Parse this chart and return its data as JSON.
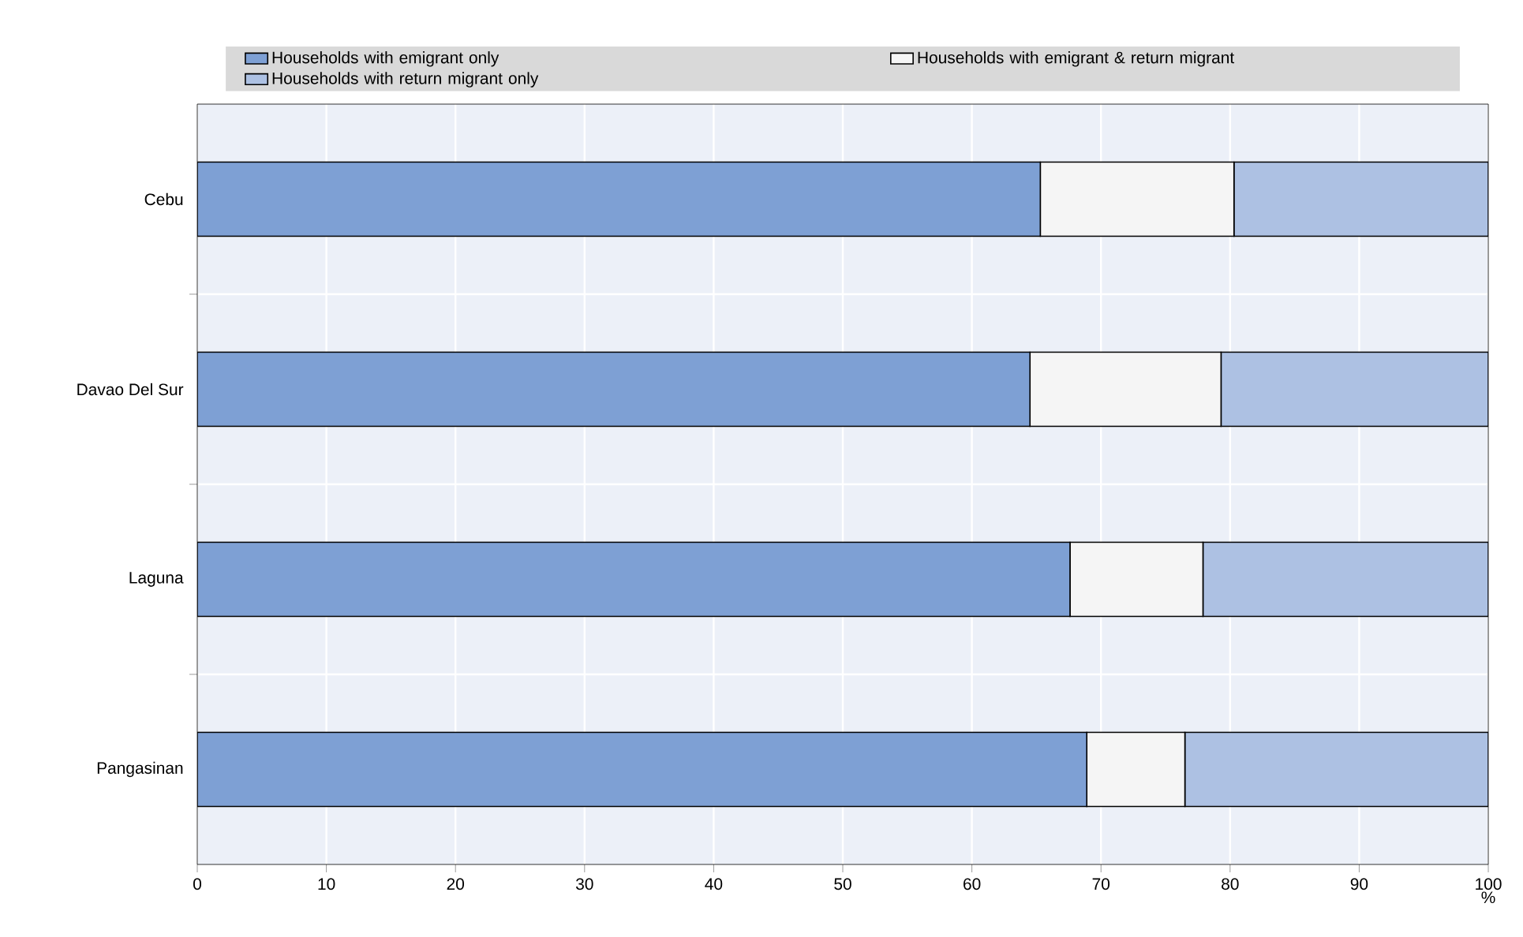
{
  "chart_data": {
    "type": "bar",
    "orientation": "horizontal",
    "stacked": true,
    "xlabel": "%",
    "categories": [
      "Cebu",
      "Davao Del Sur",
      "Laguna",
      "Pangasinan"
    ],
    "series": [
      {
        "name": "Households with emigrant only",
        "color": "#7ea0d4",
        "values": [
          65.3,
          64.5,
          67.6,
          68.9
        ]
      },
      {
        "name": "Households with emigrant & return migrant",
        "color": "#f5f5f5",
        "values": [
          15.0,
          14.8,
          10.3,
          7.6
        ]
      },
      {
        "name": "Households with return migrant only",
        "color": "#adc1e3",
        "values": [
          19.7,
          20.7,
          22.1,
          23.5
        ]
      }
    ],
    "xlim": [
      0,
      100
    ],
    "xticks": [
      0,
      10,
      20,
      30,
      40,
      50,
      60,
      70,
      80,
      90,
      100
    ],
    "grid": true,
    "legend": "top"
  }
}
